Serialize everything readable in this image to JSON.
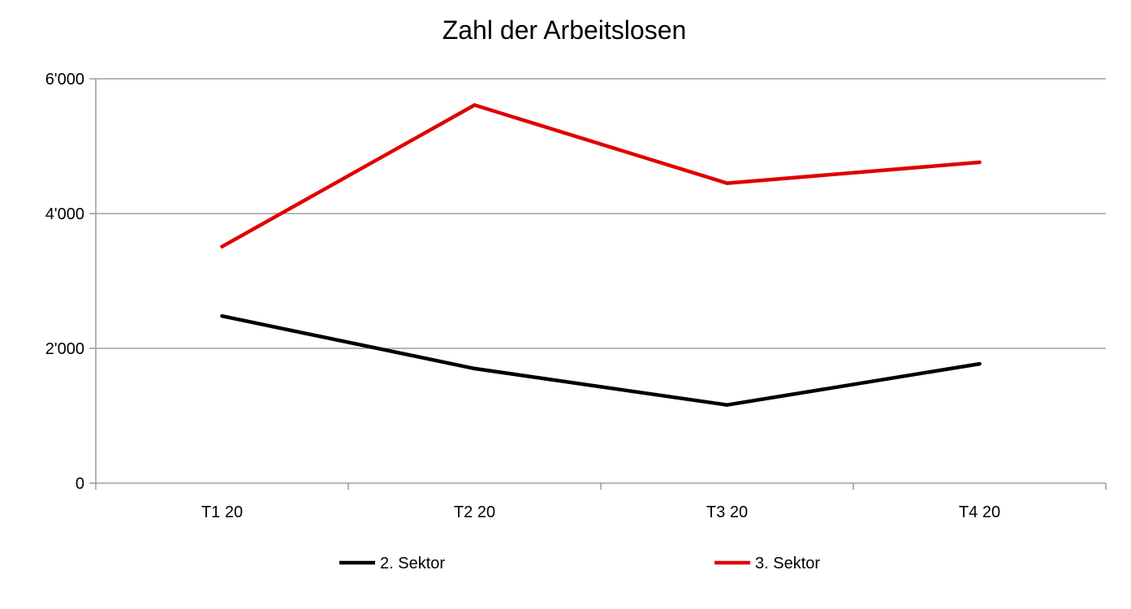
{
  "chart_data": {
    "type": "line",
    "title": "Zahl der Arbeitslosen",
    "xlabel": "",
    "ylabel": "",
    "categories": [
      "T1 20",
      "T2 20",
      "T3 20",
      "T4 20"
    ],
    "ylim": [
      0,
      6000
    ],
    "yticks": [
      0,
      2000,
      4000,
      6000
    ],
    "ytick_labels": [
      "0",
      "2'000",
      "4'000",
      "6'000"
    ],
    "grid": true,
    "legend_position": "bottom",
    "series": [
      {
        "name": "2. Sektor",
        "color": "#000000",
        "values": [
          2480,
          1700,
          1160,
          1770
        ]
      },
      {
        "name": "3. Sektor",
        "color": "#e00000",
        "values": [
          3510,
          5610,
          4450,
          4760
        ]
      }
    ]
  }
}
